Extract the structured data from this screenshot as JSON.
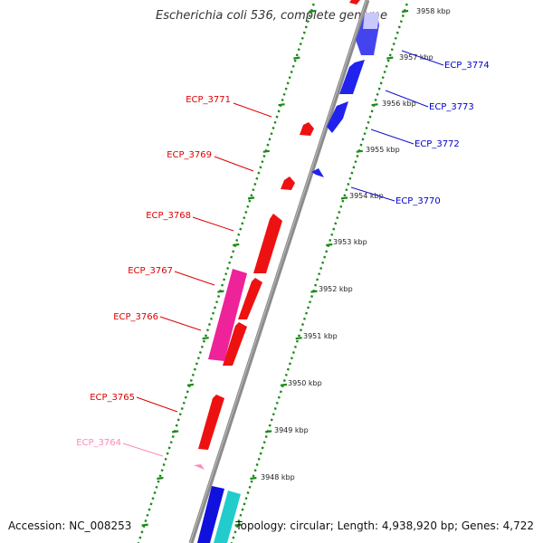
{
  "title": "Escherichia coli 536, complete genome",
  "footer": {
    "accession": "Accession: NC_008253",
    "summary": "Topology: circular; Length: 4,938,920 bp; Genes: 4,722"
  },
  "colors": {
    "backbone": "#8c8c8c",
    "tick": "#1a8a1a",
    "minus_strand_gene": "#ee1111",
    "plus_strand_gene": "#1111dd",
    "pink_gene": "#ee2299",
    "cyan_gene": "#22cccc",
    "light_pink_label": "#ff88bb"
  },
  "scale_labels": [
    "3958 kbp",
    "3957 kbp",
    "3956 kbp",
    "3955 kbp",
    "3954 kbp",
    "3953 kbp",
    "3952 kbp",
    "3951 kbp",
    "3950 kbp",
    "3949 kbp",
    "3948 kbp"
  ],
  "gene_labels": [
    {
      "text": "ECP_3774",
      "side": "right",
      "color": "#0000cc"
    },
    {
      "text": "ECP_3773",
      "side": "right",
      "color": "#0000cc"
    },
    {
      "text": "ECP_3772",
      "side": "right",
      "color": "#0000cc"
    },
    {
      "text": "ECP_3770",
      "side": "right",
      "color": "#0000cc"
    },
    {
      "text": "ECP_3771",
      "side": "left",
      "color": "#dd0000"
    },
    {
      "text": "ECP_3769",
      "side": "left",
      "color": "#dd0000"
    },
    {
      "text": "ECP_3768",
      "side": "left",
      "color": "#dd0000"
    },
    {
      "text": "ECP_3767",
      "side": "left",
      "color": "#dd0000"
    },
    {
      "text": "ECP_3766",
      "side": "left",
      "color": "#dd0000"
    },
    {
      "text": "ECP_3765",
      "side": "left",
      "color": "#dd0000"
    },
    {
      "text": "ECP_3764",
      "side": "left",
      "color": "#ff88bb"
    }
  ]
}
